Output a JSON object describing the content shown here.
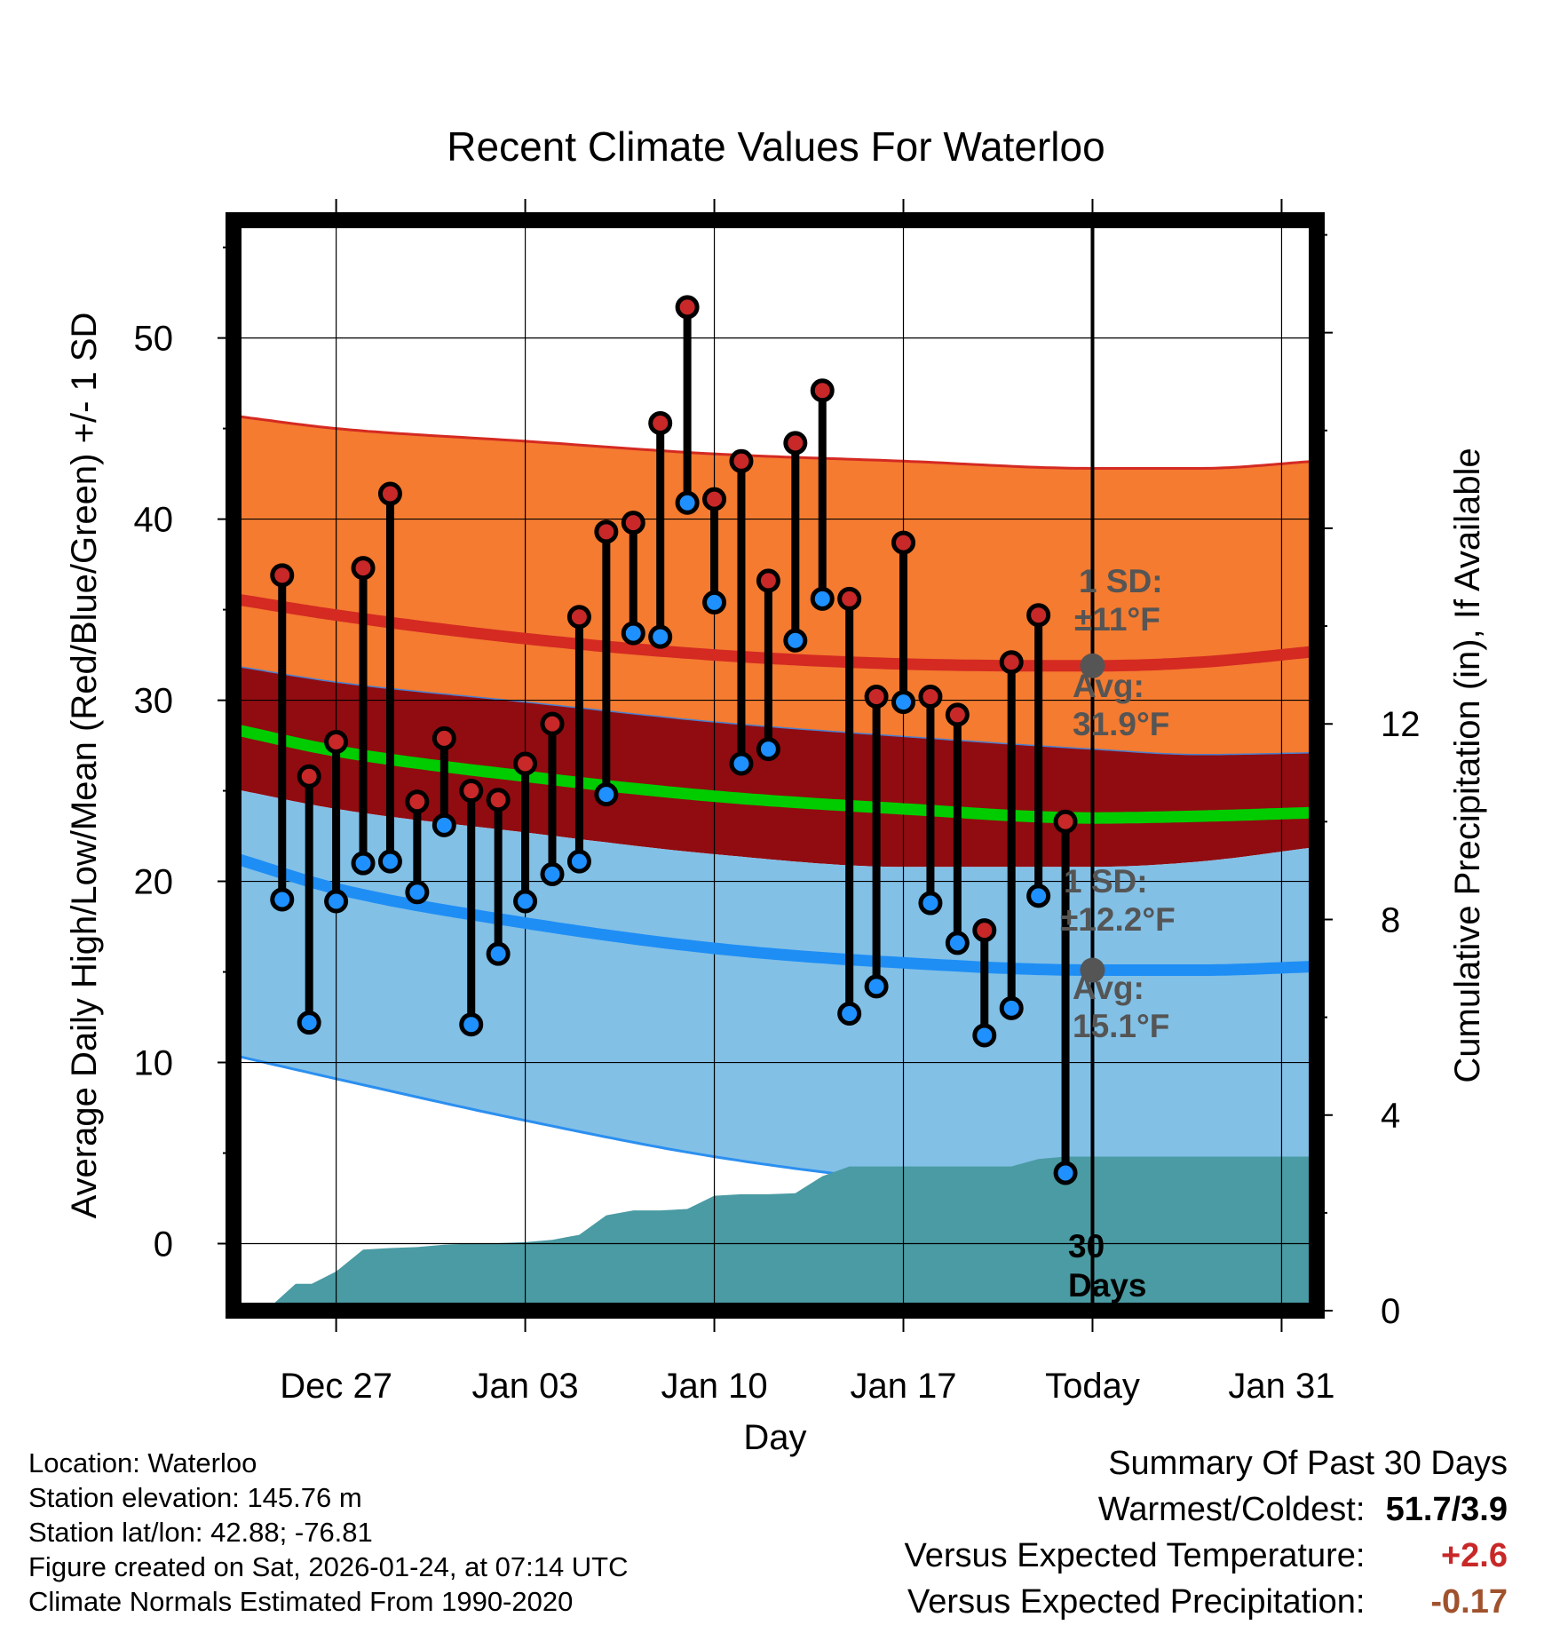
{
  "chart_data": {
    "type": "line",
    "title": "Recent Climate Values For Waterloo",
    "xlabel": "Day",
    "ylabel": "Average Daily High/Low/Mean (Red/Blue/Green) +/- 1 SD",
    "y2label": "Cumulative Precipitation (in), If Available",
    "ylim": [
      -3.7,
      56.5
    ],
    "y2lim": [
      0,
      22.3
    ],
    "xlim": [
      -3.8,
      36.3
    ],
    "yticks": [
      0,
      10,
      20,
      30,
      40,
      50
    ],
    "y2ticks": [
      0,
      4,
      8,
      12
    ],
    "xticks": [
      {
        "day": 0,
        "label": "Dec 27"
      },
      {
        "day": 7,
        "label": "Jan 03"
      },
      {
        "day": 14,
        "label": "Jan 10"
      },
      {
        "day": 21,
        "label": "Jan 17"
      },
      {
        "day": 28,
        "label": "Today"
      },
      {
        "day": 35,
        "label": "Jan 31"
      }
    ],
    "today_day": 28,
    "x_unit": "days since Dec 27",
    "normals_x": [
      -3.8,
      0,
      7,
      14,
      21,
      28,
      32,
      36.3
    ],
    "normal_high": [
      35.6,
      34.7,
      33.4,
      32.5,
      32.0,
      31.9,
      32.1,
      32.7
    ],
    "normal_high_upper": [
      45.7,
      45.0,
      44.3,
      43.6,
      43.2,
      42.8,
      42.8,
      43.2
    ],
    "normal_high_lower": [
      31.9,
      31.0,
      29.9,
      28.8,
      28.0,
      27.3,
      27.0,
      27.1
    ],
    "normal_mean": [
      28.4,
      27.2,
      25.8,
      24.7,
      24.0,
      23.5,
      23.6,
      23.8
    ],
    "normal_low": [
      21.3,
      19.6,
      17.7,
      16.3,
      15.5,
      15.1,
      15.1,
      15.3
    ],
    "normal_low_upper": [
      25.1,
      24.0,
      22.7,
      21.5,
      20.8,
      20.8,
      21.1,
      21.9
    ],
    "normal_low_lower": [
      10.4,
      9.1,
      6.8,
      4.8,
      3.5,
      3.1,
      3.2,
      3.7
    ],
    "series": [
      {
        "name": "Daily High",
        "color": "#c82828",
        "days": [
          -2,
          -1,
          0,
          1,
          2,
          3,
          4,
          5,
          6,
          7,
          8,
          9,
          10,
          11,
          12,
          13,
          14,
          15,
          16,
          17,
          18,
          19,
          20,
          21,
          22,
          23,
          24,
          25,
          26,
          27
        ],
        "values": [
          36.9,
          25.8,
          27.7,
          37.3,
          41.4,
          24.4,
          27.9,
          25.0,
          24.5,
          26.5,
          28.7,
          34.6,
          39.3,
          39.8,
          45.3,
          51.7,
          41.1,
          43.2,
          36.6,
          44.2,
          47.1,
          35.6,
          30.2,
          38.7,
          30.2,
          29.2,
          17.3,
          32.1,
          34.7,
          23.3
        ]
      },
      {
        "name": "Daily Low",
        "color": "#1e90ff",
        "days": [
          -2,
          -1,
          0,
          1,
          2,
          3,
          4,
          5,
          6,
          7,
          8,
          9,
          10,
          11,
          12,
          13,
          14,
          15,
          16,
          17,
          18,
          19,
          20,
          21,
          22,
          23,
          24,
          25,
          26,
          27
        ],
        "values": [
          19.0,
          12.2,
          18.9,
          21.0,
          21.1,
          19.4,
          23.1,
          12.1,
          16.0,
          18.9,
          20.4,
          21.1,
          24.8,
          33.7,
          33.5,
          40.9,
          35.4,
          26.5,
          27.3,
          33.3,
          35.6,
          12.7,
          14.2,
          29.9,
          18.8,
          16.6,
          11.5,
          13.0,
          19.2,
          3.9
        ]
      },
      {
        "name": "Cumulative Precipitation",
        "color": "#4a9ba3",
        "days": [
          -2.6,
          -1.5,
          -0.9,
          0,
          1,
          2,
          3,
          4,
          5,
          6,
          7,
          8,
          9,
          10,
          11,
          12,
          13,
          14,
          15,
          16,
          17,
          18,
          19,
          20,
          21,
          22,
          23,
          24,
          25,
          26,
          27,
          28,
          36.3
        ],
        "values": [
          0.0,
          0.55,
          0.55,
          0.8,
          1.25,
          1.28,
          1.3,
          1.35,
          1.37,
          1.38,
          1.4,
          1.45,
          1.55,
          1.95,
          2.05,
          2.05,
          2.08,
          2.35,
          2.38,
          2.38,
          2.4,
          2.75,
          2.95,
          2.95,
          2.95,
          2.95,
          2.95,
          2.95,
          2.95,
          3.1,
          3.15,
          3.15,
          3.15
        ]
      }
    ],
    "annotations": {
      "high_sd_label": "1 SD:",
      "high_sd_value": "±11°F",
      "high_avg_label": "Avg:",
      "high_avg_value": "31.9°F",
      "low_sd_label": "1 SD:",
      "low_sd_value": "±12.2°F",
      "low_avg_label": "Avg:",
      "low_avg_value": "15.1°F",
      "precip_days_number": "30",
      "precip_days_word": "Days"
    },
    "colors": {
      "high_band": "#f47b30",
      "high_line": "#d42a22",
      "mid_band": "#900c11",
      "mean_line": "#00cc00",
      "low_band": "#82c0e6",
      "low_line": "#1e8ef5",
      "low_band_edge": "#2b8ff0",
      "precip_fill": "#4a9ba3",
      "annotation_text": "#555555"
    }
  },
  "info": {
    "location": "Location: Waterloo",
    "elevation": "Station elevation: 145.76 m",
    "latlon": "Station lat/lon: 42.88; -76.81",
    "created": "Figure created on Sat, 2026-01-24, at 07:14 UTC",
    "normals": "Climate Normals Estimated From 1990-2020"
  },
  "summary": {
    "title": "Summary Of Past 30 Days",
    "warm_cold_label": "Warmest/Coldest:",
    "warm_cold_value": "51.7/3.9",
    "temp_label": "Versus Expected Temperature:",
    "temp_value": "+2.6",
    "temp_color": "#c82828",
    "precip_label": "Versus Expected Precipitation:",
    "precip_value": "-0.17",
    "precip_color": "#a0522d"
  }
}
